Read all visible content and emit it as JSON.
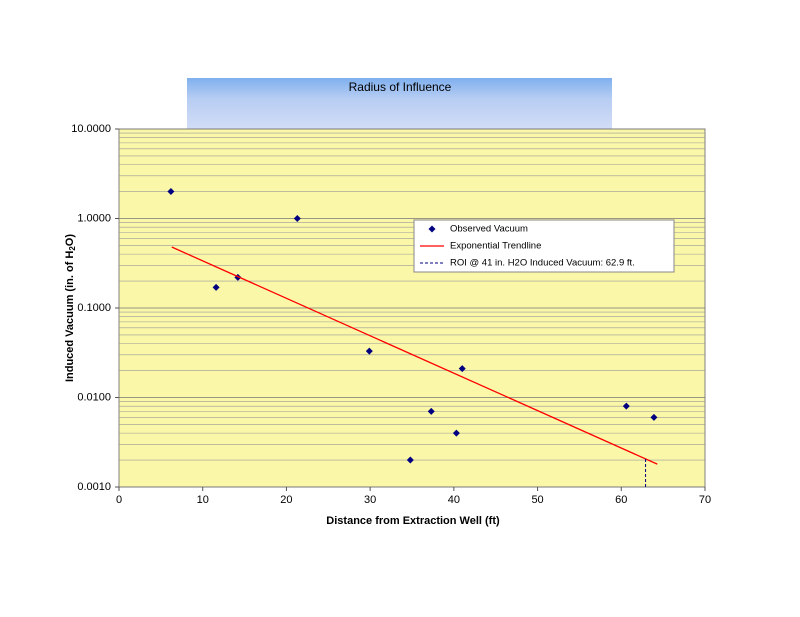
{
  "chart_data": {
    "type": "scatter",
    "title": "Radius of Influence",
    "xlabel": "Distance from Extraction Well (ft)",
    "ylabel_parts": [
      "Induced Vacuum (in. of H",
      "2",
      "O)"
    ],
    "xlim": [
      0,
      70
    ],
    "xticks": [
      0,
      10,
      20,
      30,
      40,
      50,
      60,
      70
    ],
    "ylim": [
      0.001,
      10
    ],
    "log_y": true,
    "grid": true,
    "legend": "upper right",
    "yticks": [
      {
        "value": 10,
        "label": "10.0000"
      },
      {
        "value": 1,
        "label": "1.0000"
      },
      {
        "value": 0.1,
        "label": "0.1000"
      },
      {
        "value": 0.01,
        "label": "0.0100"
      },
      {
        "value": 0.001,
        "label": "0.0010"
      }
    ],
    "minor_yticks": [
      0.002,
      0.003,
      0.004,
      0.005,
      0.006,
      0.007,
      0.008,
      0.009,
      0.02,
      0.03,
      0.04,
      0.05,
      0.06,
      0.07,
      0.08,
      0.09,
      0.2,
      0.3,
      0.4,
      0.5,
      0.6,
      0.7,
      0.8,
      0.9,
      2,
      3,
      4,
      5,
      6,
      7,
      8,
      9
    ],
    "series": [
      {
        "name": "Observed Vacuum",
        "type": "scatter",
        "color": "#000080",
        "x": [
          6.2,
          11.6,
          14.2,
          21.3,
          29.9,
          34.8,
          37.3,
          40.3,
          41.0,
          60.6,
          63.9
        ],
        "values": [
          2.0,
          0.17,
          0.22,
          1.0,
          0.033,
          0.002,
          0.007,
          0.004,
          0.021,
          0.008,
          0.006
        ]
      },
      {
        "name": "Exponential Trendline",
        "type": "line",
        "color": "#ff0000",
        "x": [
          6.3,
          64.3
        ],
        "values": [
          0.48,
          0.0018
        ]
      },
      {
        "name": "ROI @ 41 in. H2O Induced Vacuum:  62.9  ft.",
        "type": "line",
        "color": "#000080",
        "dashed": true,
        "x": [
          62.9,
          62.9
        ],
        "values": [
          0.001,
          0.0021
        ]
      }
    ]
  }
}
